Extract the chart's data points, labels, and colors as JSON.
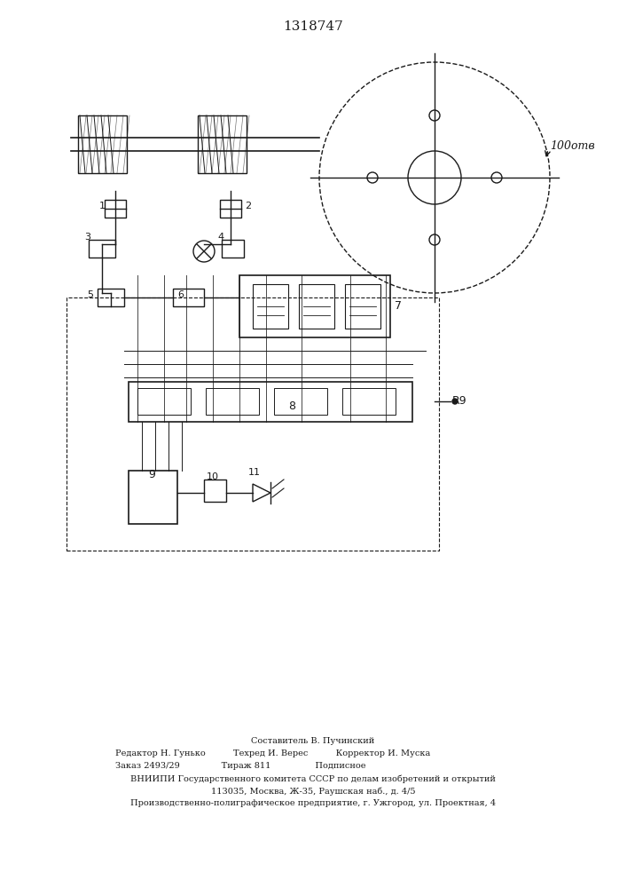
{
  "title": "1318747",
  "background_color": "#ffffff",
  "footer_lines": [
    "Составитель В. Пучинский",
    "Редактор Н. Гунько          Техред И. Верес          Корректор И. Муска",
    "Заказ 2493/29               Тираж 811                Подписное",
    "ВНИИПИ Государственного комитета СССР по делам изобретений и открытий",
    "113035, Москва, Ж-35, Раушская наб., д. 4/5",
    "Производственно-полиграфическое предприятие, г. Ужгород, ул. Проектная, 4"
  ]
}
